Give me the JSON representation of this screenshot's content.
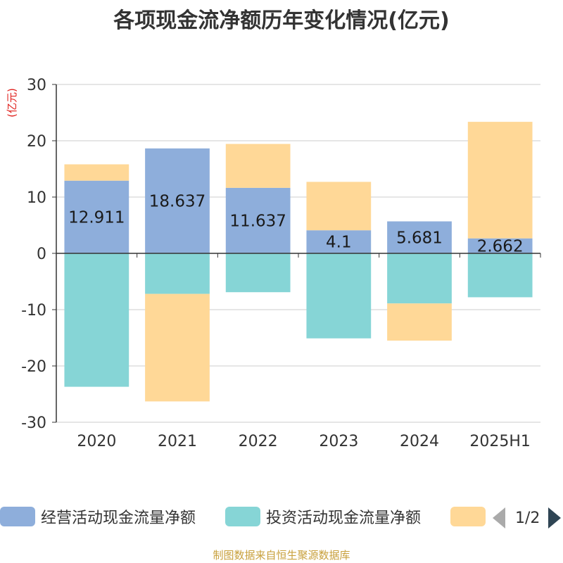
{
  "title": "各项现金流净额历年变化情况(亿元)",
  "source": "制图数据来自恒生聚源数据库",
  "colors": {
    "operating": "#8eaedb",
    "investing": "#86d5d6",
    "financing": "#ffd897",
    "axis": "#333333",
    "grid": "#cccccc",
    "unit_label": "#e0201c"
  },
  "legend": {
    "items": [
      {
        "label": "经营活动现金流量净额",
        "color": "#8eaedb"
      },
      {
        "label": "投资活动现金流量净额",
        "color": "#86d5d6"
      },
      {
        "label": "",
        "color": "#ffd897"
      }
    ],
    "page": "1/2",
    "prev_icon": "triangle-left",
    "next_icon": "triangle-right"
  },
  "chart_data": {
    "type": "bar",
    "stacked": true,
    "categories": [
      "2020",
      "2021",
      "2022",
      "2023",
      "2024",
      "2025H1"
    ],
    "ylabel": "(亿元)",
    "ylim": [
      -30,
      30
    ],
    "yticks": [
      "30",
      "20",
      "10",
      "0",
      "-10",
      "-20",
      "-30"
    ],
    "grid": true,
    "legend_position": "bottom",
    "series": [
      {
        "name": "经营活动现金流量净额",
        "values": [
          12.911,
          18.637,
          11.637,
          4.1,
          5.681,
          2.662
        ],
        "labels": [
          "12.911",
          "18.637",
          "11.637",
          "4.1",
          "5.681",
          "2.662"
        ]
      },
      {
        "name": "投资活动现金流量净额",
        "values": [
          -23.7,
          -7.2,
          -6.9,
          -15.1,
          -8.9,
          -7.8
        ]
      },
      {
        "values": [
          2.9,
          -19.1,
          7.8,
          8.6,
          -6.6,
          20.7
        ]
      }
    ]
  }
}
